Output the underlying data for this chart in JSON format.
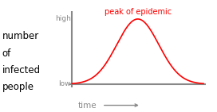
{
  "title": "peak of epidemic",
  "title_color": "#ff0000",
  "ylabel_lines": [
    "number",
    "of",
    "infected",
    "people"
  ],
  "xlabel": "time",
  "ytick_high": "high",
  "ytick_low": "low",
  "curve_color": "#ff0000",
  "axis_color": "#888888",
  "bg_color": "#ffffff",
  "text_color": "#888888",
  "label_color": "#000000",
  "curve_mean": 0.5,
  "curve_std": 0.16,
  "figsize": [
    2.72,
    1.41
  ],
  "dpi": 100
}
